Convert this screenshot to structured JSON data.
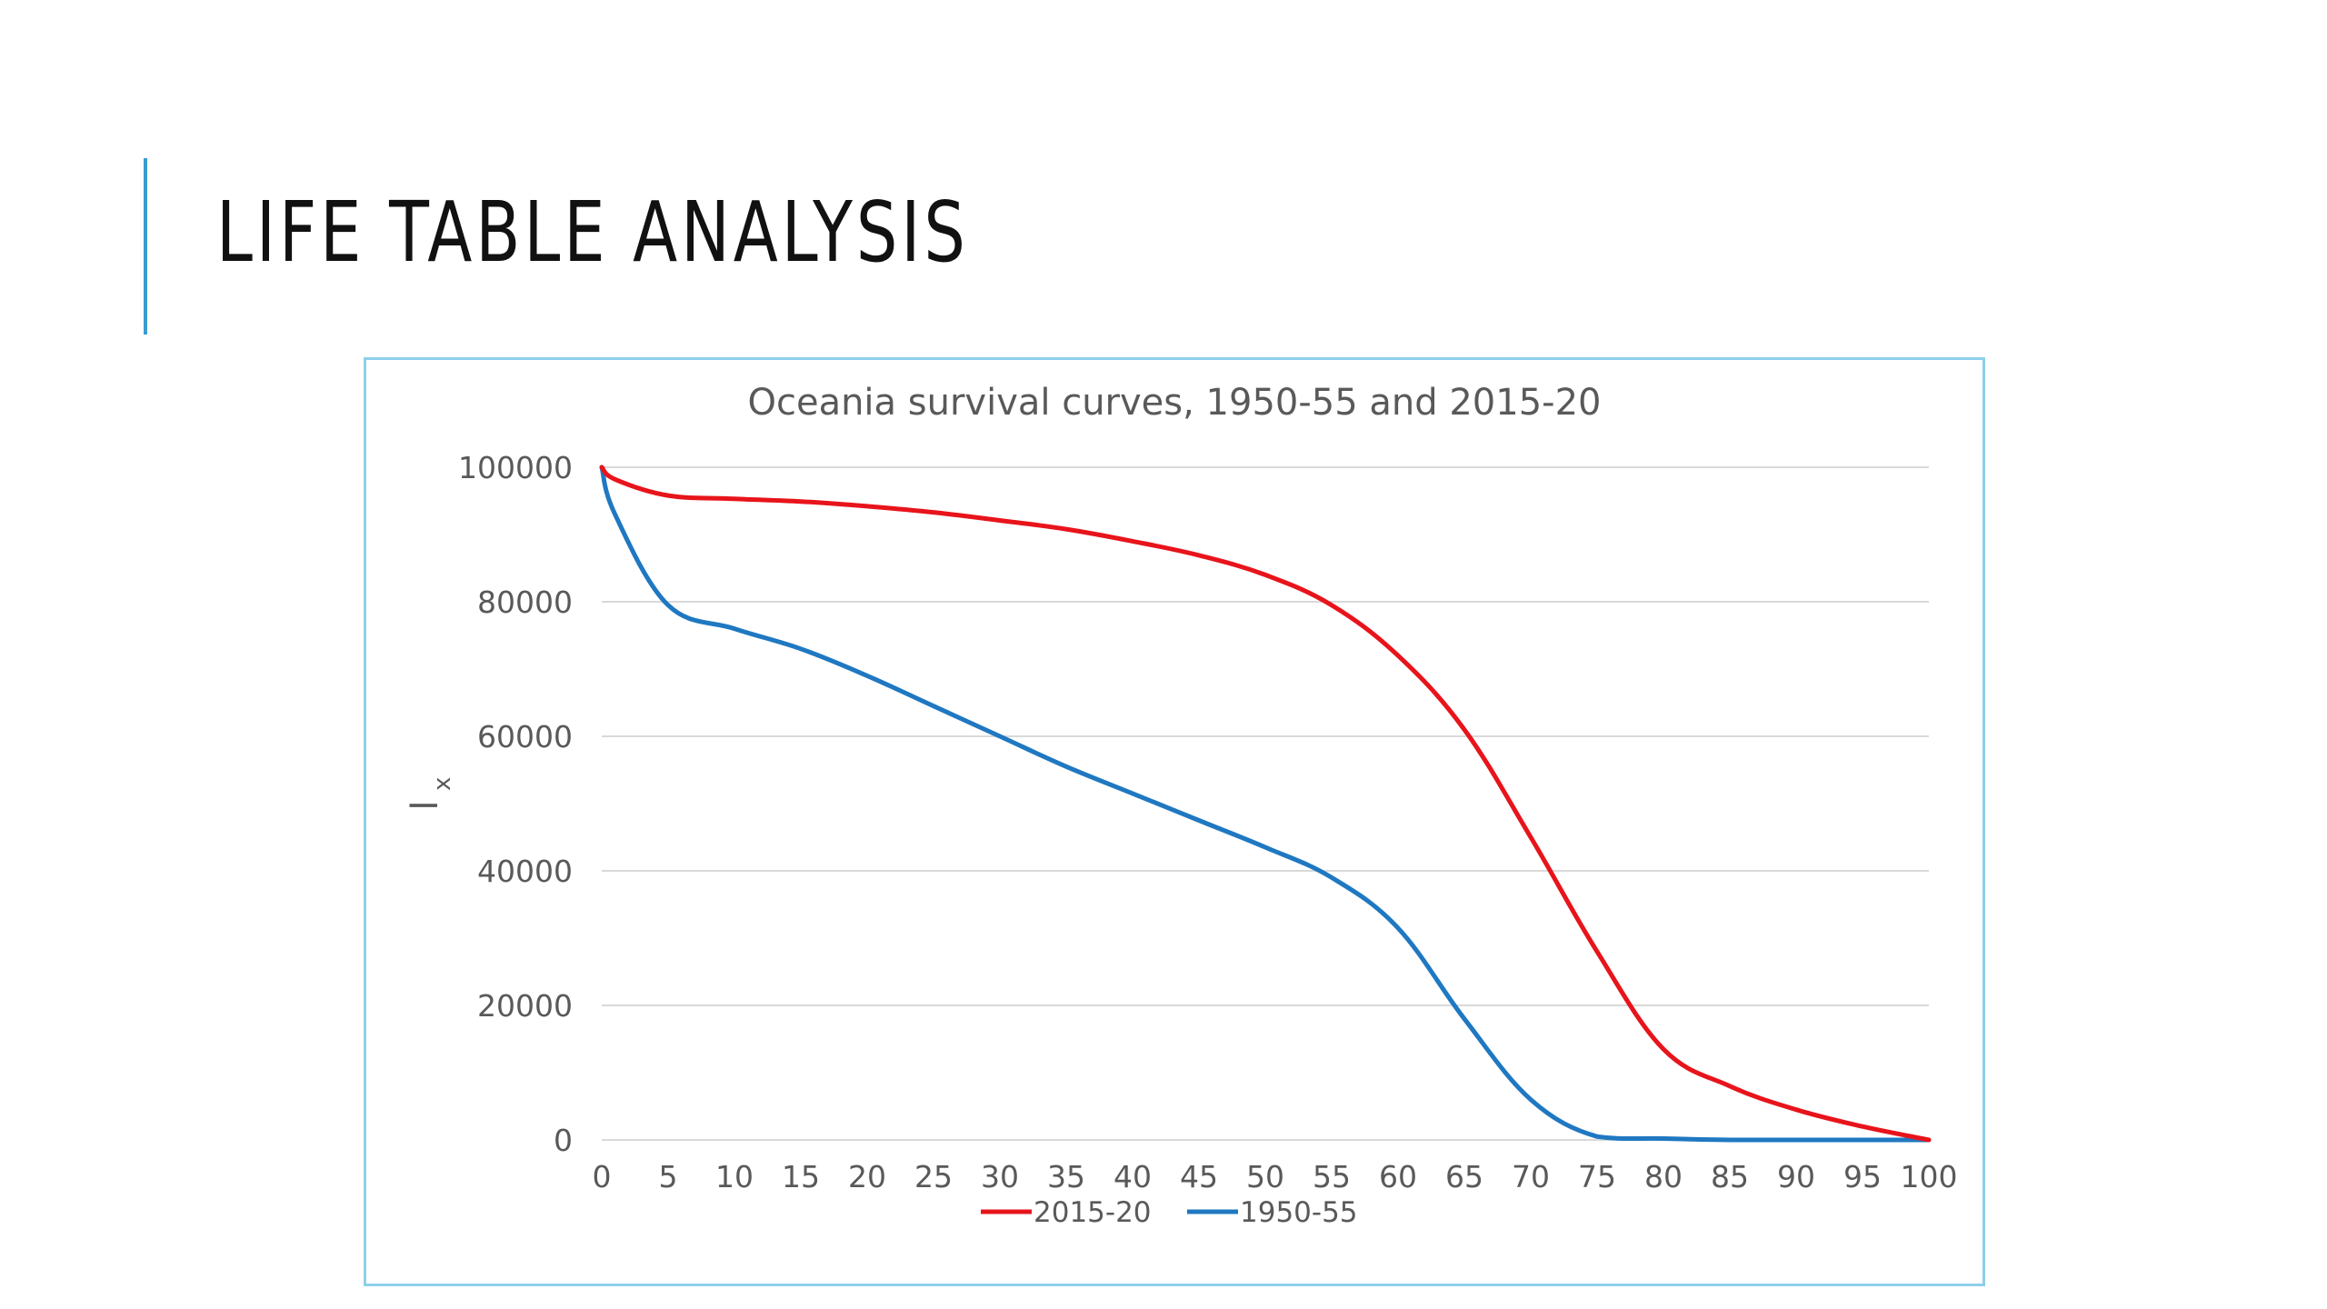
{
  "slide": {
    "title": "LIFE TABLE ANALYSIS",
    "accent_color": "#3a9dd1",
    "chart_border_color": "#8dd0ea"
  },
  "chart_data": {
    "type": "line",
    "title": "Oceania survival curves, 1950-55 and 2015-20",
    "xlabel": "",
    "ylabel_main": "l",
    "ylabel_sub": "x",
    "x": [
      0,
      1,
      5,
      10,
      15,
      20,
      25,
      30,
      35,
      40,
      45,
      50,
      55,
      60,
      65,
      70,
      75,
      80,
      85,
      90,
      95,
      100
    ],
    "xlim": [
      0,
      100
    ],
    "ylim": [
      0,
      100000
    ],
    "x_ticks": [
      0,
      5,
      10,
      15,
      20,
      25,
      30,
      35,
      40,
      45,
      50,
      55,
      60,
      65,
      70,
      75,
      80,
      85,
      90,
      95,
      100
    ],
    "y_ticks": [
      0,
      20000,
      40000,
      60000,
      80000,
      100000
    ],
    "grid": true,
    "legend_position": "bottom",
    "series": [
      {
        "name": "2015-20",
        "color": "#e8141b",
        "values": [
          100000,
          98200,
          95800,
          95300,
          94900,
          94200,
          93300,
          92100,
          90800,
          89000,
          86900,
          84000,
          79500,
          72000,
          61000,
          45000,
          28000,
          13500,
          8000,
          4500,
          2000,
          0
        ]
      },
      {
        "name": "1950-55",
        "color": "#1f78c1",
        "values": [
          100000,
          93000,
          79500,
          76000,
          73000,
          69000,
          64500,
          60000,
          55500,
          51500,
          47500,
          43500,
          39000,
          31500,
          18000,
          6000,
          500,
          200,
          0,
          0,
          0,
          0
        ]
      }
    ]
  }
}
